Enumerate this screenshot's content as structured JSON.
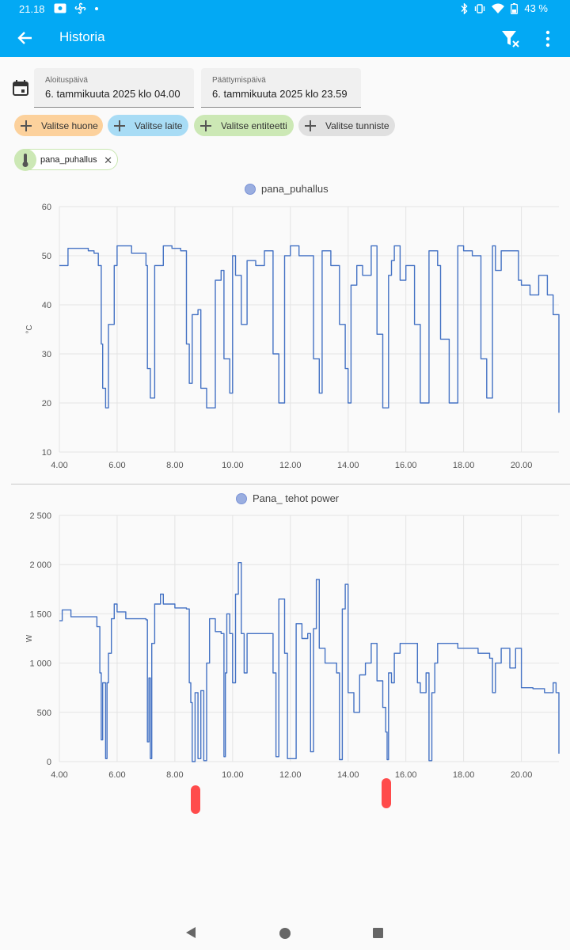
{
  "status_bar": {
    "time": "21.18",
    "battery": "43 %"
  },
  "app_bar": {
    "title": "Historia"
  },
  "date_range": {
    "start_label": "Aloituspäivä",
    "start_value": "6. tammikuuta 2025 klo 04.00",
    "end_label": "Päättymispäivä",
    "end_value": "6. tammikuuta 2025 klo 23.59"
  },
  "filters": {
    "room": "Valitse huone",
    "device": "Valitse laite",
    "entity": "Valitse entiteetti",
    "label": "Valitse tunniste"
  },
  "selected_entity": {
    "name": "pana_puhallus"
  },
  "colors": {
    "accent": "#03a9f4",
    "series": "#4472c4"
  },
  "chart_data": [
    {
      "type": "line",
      "series": [
        {
          "name": "pana_puhallus"
        }
      ],
      "ylabel": "°C",
      "ylim": [
        10,
        60
      ],
      "yticks": [
        60,
        50,
        40,
        30,
        20,
        10
      ],
      "xlim": [
        4,
        21.3
      ],
      "xticks": [
        "4.00",
        "6.00",
        "8.00",
        "10.00",
        "12.00",
        "14.00",
        "16.00",
        "18.00",
        "20.00"
      ],
      "x": [
        4.0,
        4.3,
        4.7,
        5.0,
        5.2,
        5.35,
        5.45,
        5.5,
        5.6,
        5.7,
        5.9,
        6.0,
        6.3,
        6.5,
        6.8,
        7.0,
        7.05,
        7.15,
        7.3,
        7.6,
        7.9,
        8.2,
        8.4,
        8.5,
        8.6,
        8.8,
        8.9,
        9.1,
        9.4,
        9.6,
        9.7,
        9.9,
        10.0,
        10.1,
        10.3,
        10.5,
        10.8,
        11.1,
        11.4,
        11.6,
        11.8,
        12.0,
        12.3,
        12.6,
        12.8,
        13.0,
        13.1,
        13.4,
        13.7,
        13.9,
        14.0,
        14.1,
        14.3,
        14.5,
        14.8,
        15.0,
        15.2,
        15.4,
        15.5,
        15.6,
        15.8,
        16.0,
        16.3,
        16.5,
        16.8,
        17.0,
        17.1,
        17.2,
        17.5,
        17.8,
        18.0,
        18.3,
        18.6,
        18.8,
        19.0,
        19.1,
        19.3,
        19.6,
        19.9,
        20.0,
        20.3,
        20.6,
        20.9,
        21.1,
        21.3
      ],
      "y": [
        48,
        51.5,
        51.5,
        51,
        50.5,
        48,
        32,
        23,
        19,
        36,
        48,
        52,
        52,
        50.5,
        50.5,
        48,
        27,
        21,
        48,
        52,
        51.5,
        51,
        32,
        24,
        38,
        39,
        23,
        19,
        45,
        47,
        29,
        22,
        50,
        46,
        36,
        49,
        48,
        51,
        30,
        20,
        50,
        52,
        50,
        50,
        29,
        22,
        51,
        48,
        36,
        27,
        20,
        44,
        48,
        46,
        52,
        34,
        19,
        46,
        49,
        52,
        45,
        48,
        36,
        20,
        51,
        51,
        48,
        33,
        20,
        52,
        51,
        50,
        29,
        21,
        52,
        47,
        51,
        51,
        45,
        44,
        42,
        46,
        42,
        38,
        18
      ],
      "marks": {
        "x0": 75,
        "x1": 706,
        "y0": 571,
        "y1": 261
      }
    },
    {
      "type": "line",
      "series": [
        {
          "name": "Pana_ tehot power"
        }
      ],
      "ylabel": "W",
      "ylim": [
        0,
        2500
      ],
      "yticks": [
        "2 500",
        "2 000",
        "1 500",
        "1 000",
        "500",
        "0"
      ],
      "xlim": [
        4,
        21.3
      ],
      "xticks": [
        "4.00",
        "6.00",
        "8.00",
        "10.00",
        "12.00",
        "14.00",
        "16.00",
        "18.00",
        "20.00"
      ],
      "x": [
        4.0,
        4.1,
        4.3,
        4.4,
        5.0,
        5.3,
        5.4,
        5.45,
        5.5,
        5.6,
        5.65,
        5.7,
        5.8,
        5.9,
        6.0,
        6.1,
        6.3,
        6.7,
        7.0,
        7.05,
        7.1,
        7.15,
        7.2,
        7.3,
        7.5,
        7.6,
        8.0,
        8.4,
        8.5,
        8.55,
        8.6,
        8.7,
        8.8,
        8.9,
        9.0,
        9.1,
        9.2,
        9.4,
        9.6,
        9.7,
        9.75,
        9.8,
        9.9,
        10.0,
        10.1,
        10.2,
        10.3,
        10.4,
        10.5,
        10.6,
        10.8,
        11.3,
        11.4,
        11.5,
        11.6,
        11.8,
        11.9,
        12.2,
        12.4,
        12.6,
        12.7,
        12.8,
        12.9,
        13.0,
        13.2,
        13.4,
        13.6,
        13.7,
        13.8,
        13.9,
        14.0,
        14.2,
        14.4,
        14.6,
        14.8,
        15.0,
        15.2,
        15.3,
        15.35,
        15.4,
        15.5,
        15.6,
        15.8,
        16.0,
        16.2,
        16.4,
        16.5,
        16.6,
        16.7,
        16.8,
        16.9,
        17.0,
        17.1,
        17.2,
        17.5,
        17.8,
        18.0,
        18.5,
        18.9,
        19.0,
        19.1,
        19.3,
        19.6,
        19.8,
        20.0,
        20.4,
        20.8,
        21.0,
        21.1,
        21.2,
        21.3
      ],
      "y": [
        1430,
        1540,
        1540,
        1470,
        1470,
        1370,
        900,
        220,
        800,
        30,
        800,
        1100,
        1450,
        1600,
        1520,
        1520,
        1450,
        1450,
        1440,
        200,
        850,
        30,
        1200,
        1600,
        1700,
        1600,
        1560,
        1550,
        800,
        600,
        0,
        700,
        30,
        720,
        10,
        1000,
        1450,
        1320,
        1300,
        50,
        900,
        1500,
        1300,
        800,
        1700,
        2020,
        1300,
        900,
        1300,
        1300,
        1300,
        1300,
        900,
        50,
        1650,
        1100,
        30,
        1400,
        1250,
        1300,
        100,
        1350,
        1850,
        1150,
        1000,
        1000,
        900,
        20,
        1550,
        1800,
        700,
        500,
        880,
        1000,
        1200,
        820,
        550,
        300,
        20,
        900,
        800,
        1100,
        1200,
        1200,
        1200,
        800,
        700,
        700,
        900,
        10,
        700,
        1000,
        1200,
        1200,
        1200,
        1150,
        1150,
        1100,
        1050,
        700,
        1000,
        1150,
        950,
        1150,
        750,
        740,
        700,
        700,
        800,
        700,
        80
      ],
      "marks": {
        "x0": 75,
        "x1": 706,
        "y0": 962,
        "y1": 651
      }
    }
  ]
}
